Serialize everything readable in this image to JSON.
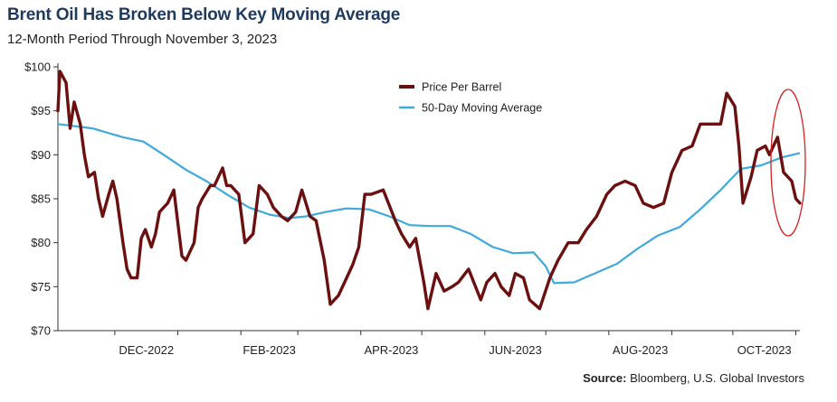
{
  "header": {
    "title": "Brent Oil Has Broken Below Key Moving Average",
    "subtitle": "12-Month Period Through November 3, 2023"
  },
  "footer": {
    "source_label": "Source:",
    "source_text": " Bloomberg, U.S. Global Investors"
  },
  "chart_data": {
    "type": "line",
    "title": "Brent Oil Has Broken Below Key Moving Average",
    "subtitle": "12-Month Period Through November 3, 2023",
    "xlabel": "",
    "ylabel": "",
    "ylim": [
      70,
      100
    ],
    "yticks": [
      70,
      75,
      80,
      85,
      90,
      95,
      100
    ],
    "ytick_labels": [
      "$70",
      "$75",
      "$80",
      "$85",
      "$90",
      "$95",
      "$100"
    ],
    "xlim": [
      "2022-11-03",
      "2023-11-03"
    ],
    "xtick_labels": [
      "DEC-2022",
      "FEB-2023",
      "APR-2023",
      "JUN-2023",
      "AUG-2023",
      "OCT-2023"
    ],
    "xtick_dates": [
      "2022-12-01",
      "2023-02-01",
      "2023-04-01",
      "2023-06-01",
      "2023-08-01",
      "2023-10-01"
    ],
    "grid": false,
    "legend": "top-center",
    "highlight": "ellipse around the last weeks (mid-Oct to Nov 3, 2023)",
    "colors": {
      "price": "#6b0f0f",
      "moving_average": "#3fa9dd",
      "highlight": "#d62020"
    },
    "series": [
      {
        "name": "Price Per Barrel",
        "x": [
          "2022-11-03",
          "2022-11-04",
          "2022-11-07",
          "2022-11-09",
          "2022-11-11",
          "2022-11-14",
          "2022-11-16",
          "2022-11-18",
          "2022-11-21",
          "2022-11-23",
          "2022-11-25",
          "2022-11-28",
          "2022-11-30",
          "2022-12-02",
          "2022-12-05",
          "2022-12-07",
          "2022-12-09",
          "2022-12-12",
          "2022-12-14",
          "2022-12-16",
          "2022-12-19",
          "2022-12-21",
          "2022-12-23",
          "2022-12-27",
          "2022-12-30",
          "2023-01-03",
          "2023-01-05",
          "2023-01-09",
          "2023-01-11",
          "2023-01-13",
          "2023-01-17",
          "2023-01-19",
          "2023-01-23",
          "2023-01-25",
          "2023-01-27",
          "2023-01-31",
          "2023-02-03",
          "2023-02-07",
          "2023-02-10",
          "2023-02-14",
          "2023-02-17",
          "2023-02-21",
          "2023-02-24",
          "2023-02-28",
          "2023-03-03",
          "2023-03-07",
          "2023-03-10",
          "2023-03-14",
          "2023-03-17",
          "2023-03-21",
          "2023-03-24",
          "2023-03-28",
          "2023-03-31",
          "2023-04-03",
          "2023-04-06",
          "2023-04-12",
          "2023-04-18",
          "2023-04-21",
          "2023-04-25",
          "2023-04-28",
          "2023-05-02",
          "2023-05-04",
          "2023-05-08",
          "2023-05-12",
          "2023-05-16",
          "2023-05-19",
          "2023-05-24",
          "2023-05-30",
          "2023-06-02",
          "2023-06-06",
          "2023-06-09",
          "2023-06-13",
          "2023-06-16",
          "2023-06-20",
          "2023-06-23",
          "2023-06-28",
          "2023-07-03",
          "2023-07-07",
          "2023-07-12",
          "2023-07-17",
          "2023-07-21",
          "2023-07-26",
          "2023-07-31",
          "2023-08-04",
          "2023-08-09",
          "2023-08-14",
          "2023-08-18",
          "2023-08-23",
          "2023-08-28",
          "2023-09-01",
          "2023-09-06",
          "2023-09-11",
          "2023-09-15",
          "2023-09-20",
          "2023-09-25",
          "2023-09-28",
          "2023-10-02",
          "2023-10-04",
          "2023-10-06",
          "2023-10-10",
          "2023-10-13",
          "2023-10-17",
          "2023-10-19",
          "2023-10-23",
          "2023-10-26",
          "2023-10-30",
          "2023-11-01",
          "2023-11-03"
        ],
        "values": [
          95.0,
          99.5,
          98.2,
          93.0,
          96.0,
          93.5,
          90.0,
          87.5,
          88.0,
          85.0,
          83.0,
          85.5,
          87.0,
          85.0,
          80.0,
          77.0,
          76.0,
          76.0,
          80.5,
          81.5,
          79.5,
          81.0,
          83.5,
          84.5,
          86.0,
          78.5,
          78.0,
          80.0,
          84.0,
          85.0,
          86.5,
          86.5,
          88.5,
          86.5,
          86.5,
          85.5,
          80.0,
          81.0,
          86.5,
          85.5,
          84.0,
          83.0,
          82.5,
          83.5,
          86.0,
          83.0,
          82.5,
          78.0,
          73.0,
          74.0,
          75.5,
          77.5,
          79.5,
          85.5,
          85.5,
          86.0,
          82.5,
          81.0,
          79.5,
          80.5,
          75.5,
          72.5,
          76.5,
          74.5,
          75.0,
          75.5,
          77.0,
          73.5,
          75.5,
          76.5,
          75.0,
          74.0,
          76.5,
          76.0,
          73.5,
          72.5,
          76.0,
          78.0,
          80.0,
          80.0,
          81.5,
          83.0,
          85.5,
          86.5,
          87.0,
          86.5,
          84.5,
          84.0,
          84.5,
          88.0,
          90.5,
          91.0,
          93.5,
          93.5,
          93.5,
          97.0,
          95.5,
          91.0,
          84.5,
          87.5,
          90.5,
          91.0,
          90.0,
          92.0,
          88.0,
          87.0,
          85.0,
          84.5
        ]
      },
      {
        "name": "50-Day Moving Average",
        "x": [
          "2022-11-03",
          "2022-11-20",
          "2022-12-05",
          "2022-12-15",
          "2022-12-25",
          "2023-01-05",
          "2023-01-15",
          "2023-01-25",
          "2023-02-05",
          "2023-02-15",
          "2023-02-25",
          "2023-03-05",
          "2023-03-15",
          "2023-03-25",
          "2023-04-05",
          "2023-04-15",
          "2023-04-25",
          "2023-05-05",
          "2023-05-15",
          "2023-05-25",
          "2023-06-05",
          "2023-06-15",
          "2023-06-25",
          "2023-07-01",
          "2023-07-05",
          "2023-07-15",
          "2023-07-25",
          "2023-08-05",
          "2023-08-15",
          "2023-08-25",
          "2023-09-05",
          "2023-09-15",
          "2023-09-25",
          "2023-10-05",
          "2023-10-15",
          "2023-10-25",
          "2023-11-03"
        ],
        "values": [
          93.5,
          93.0,
          92.0,
          91.5,
          90.0,
          88.3,
          87.0,
          85.5,
          84.0,
          83.2,
          82.8,
          83.0,
          83.5,
          83.9,
          83.8,
          83.0,
          82.0,
          81.9,
          81.9,
          81.0,
          79.5,
          78.8,
          78.9,
          77.3,
          75.4,
          75.5,
          76.5,
          77.6,
          79.3,
          80.8,
          81.8,
          83.8,
          86.0,
          88.4,
          88.8,
          89.7,
          90.2
        ]
      }
    ]
  }
}
